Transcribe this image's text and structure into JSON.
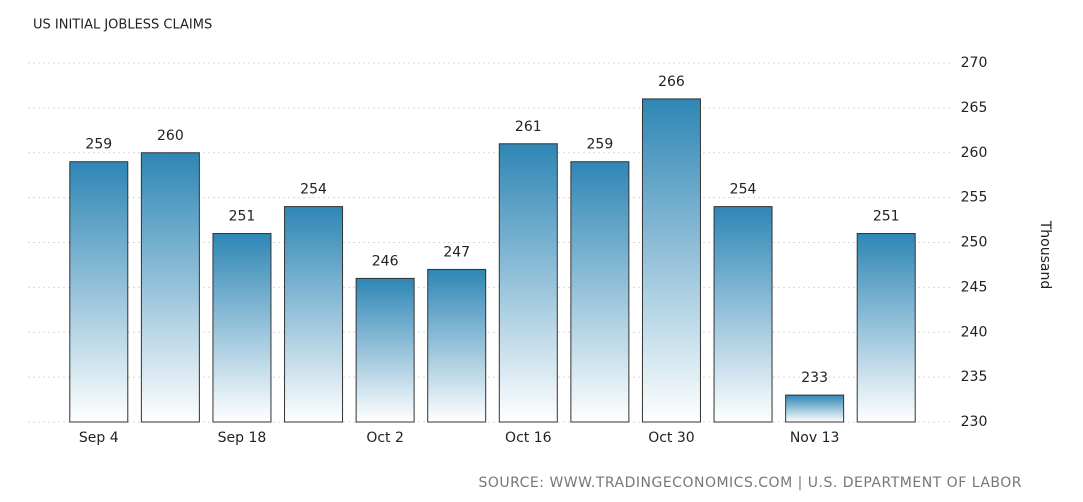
{
  "chart_data": {
    "type": "bar",
    "title": "US INITIAL JOBLESS CLAIMS",
    "categories": [
      "Sep 4",
      null,
      "Sep 18",
      null,
      "Oct 2",
      null,
      "Oct 16",
      null,
      "Oct 30",
      null,
      "Nov 13",
      null
    ],
    "values": [
      259,
      260,
      251,
      254,
      246,
      247,
      261,
      259,
      266,
      254,
      233,
      251
    ],
    "color": "#2e86b5",
    "ylim": [
      230,
      270
    ],
    "yticks": [
      230,
      235,
      240,
      245,
      250,
      255,
      260,
      265,
      270
    ],
    "y_label": "Thousand",
    "grid": true,
    "source": "SOURCE: WWW.TRADINGECONOMICS.COM | U.S. DEPARTMENT OF LABOR"
  }
}
